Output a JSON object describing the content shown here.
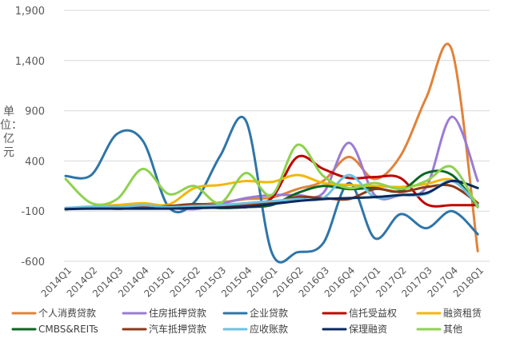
{
  "chart_data": {
    "type": "line",
    "title": "",
    "ylabel": "单位：亿元",
    "xlabel": "",
    "ylim": [
      -600,
      1900
    ],
    "yticks": [
      -600,
      -100,
      400,
      900,
      1400,
      1900
    ],
    "ytick_labels": [
      "-600",
      "-100",
      "400",
      "900",
      "1,400",
      "1,900"
    ],
    "grid": true,
    "legend_position": "bottom",
    "categories": [
      "2014Q1",
      "2014Q2",
      "2014Q3",
      "2014Q4",
      "2015Q1",
      "2015Q2",
      "2015Q3",
      "2015Q4",
      "2016Q1",
      "2016Q2",
      "2016Q3",
      "2016Q4",
      "2017Q1",
      "2017Q2",
      "2017Q3",
      "2017Q4",
      "2018Q1"
    ],
    "series": [
      {
        "name": "个人消费贷款",
        "color": "#E0833A",
        "values": [
          -70,
          -65,
          -75,
          -70,
          -65,
          -40,
          -15,
          20,
          35,
          120,
          200,
          440,
          220,
          450,
          1030,
          1500,
          -500
        ]
      },
      {
        "name": "住房抵押贷款",
        "color": "#9B7BD4",
        "values": [
          -80,
          -60,
          -40,
          -70,
          -70,
          -80,
          -30,
          30,
          60,
          60,
          80,
          580,
          60,
          60,
          140,
          840,
          200
        ]
      },
      {
        "name": "企业贷款",
        "color": "#2E75A8",
        "values": [
          250,
          260,
          670,
          600,
          -60,
          -10,
          450,
          800,
          -510,
          -510,
          -420,
          180,
          -370,
          -130,
          -270,
          -100,
          -330
        ]
      },
      {
        "name": "信托受益权",
        "color": "#C00000",
        "values": [
          -80,
          -65,
          -75,
          -70,
          -65,
          -40,
          -60,
          -40,
          30,
          440,
          320,
          230,
          240,
          230,
          -30,
          -40,
          -40
        ]
      },
      {
        "name": "融资租赁",
        "color": "#F2B705",
        "values": [
          -80,
          -55,
          -40,
          -20,
          -35,
          130,
          160,
          200,
          190,
          260,
          180,
          160,
          150,
          140,
          170,
          210,
          -20
        ]
      },
      {
        "name": "CMBS&REITs",
        "color": "#0B6623",
        "values": [
          -80,
          -70,
          -75,
          -70,
          -70,
          -50,
          -70,
          -60,
          -40,
          80,
          150,
          120,
          130,
          100,
          280,
          260,
          -60
        ]
      },
      {
        "name": "汽车抵押贷款",
        "color": "#8C3A1A",
        "values": [
          -70,
          -60,
          -60,
          -60,
          -50,
          -30,
          -40,
          -30,
          -20,
          40,
          30,
          20,
          120,
          90,
          140,
          150,
          -20
        ]
      },
      {
        "name": "应收账款",
        "color": "#6EC1E4",
        "values": [
          -70,
          -55,
          -60,
          -40,
          -60,
          -50,
          -40,
          -20,
          0,
          20,
          30,
          260,
          40,
          60,
          70,
          200,
          -40
        ]
      },
      {
        "name": "保理融资",
        "color": "#0B2A5B",
        "values": [
          -80,
          -75,
          -75,
          -75,
          -75,
          -70,
          -65,
          -60,
          -30,
          0,
          20,
          30,
          40,
          60,
          80,
          200,
          130
        ]
      },
      {
        "name": "其他",
        "color": "#8FD14F",
        "values": [
          220,
          -20,
          20,
          320,
          70,
          150,
          -20,
          280,
          60,
          560,
          250,
          130,
          180,
          120,
          200,
          340,
          -60
        ]
      }
    ]
  }
}
